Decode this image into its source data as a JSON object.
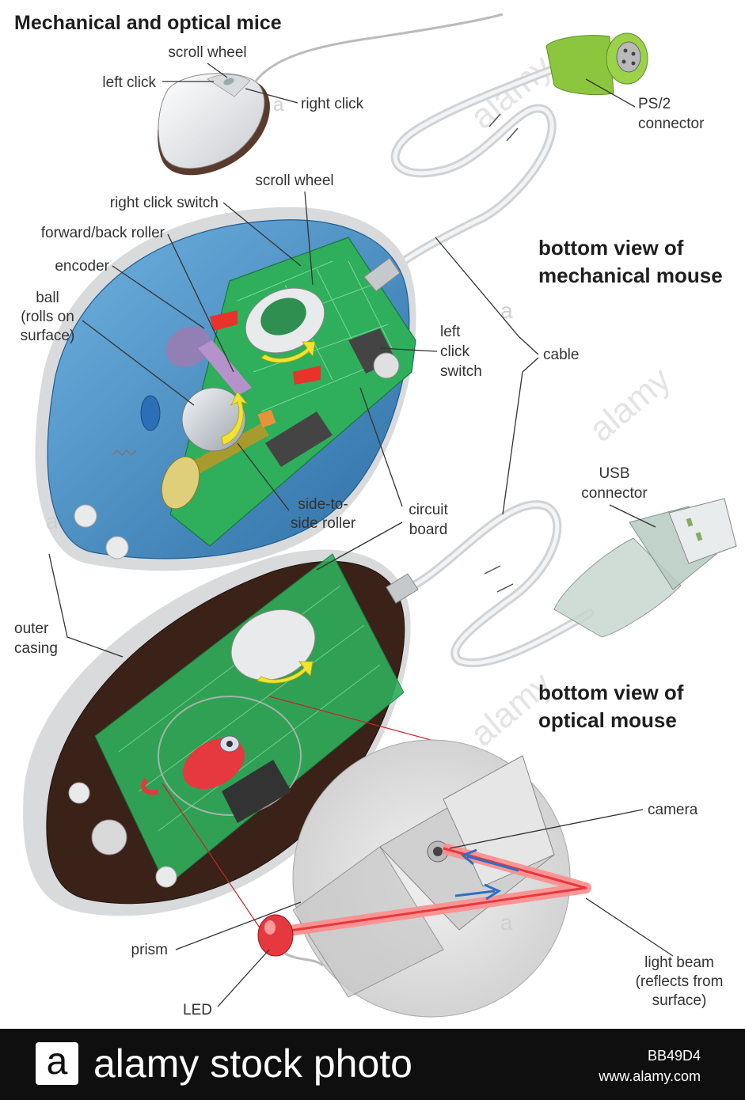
{
  "title": "Mechanical and optical mice",
  "headings": {
    "mechanical": [
      "bottom view of",
      "mechanical mouse"
    ],
    "optical": [
      "bottom view of",
      "optical mouse"
    ]
  },
  "labels": {
    "scroll_wheel_top": "scroll wheel",
    "left_click": "left click",
    "right_click": "right click",
    "ps2": [
      "PS/2",
      "connector"
    ],
    "scroll_wheel_mech": "scroll wheel",
    "right_click_switch": "right click switch",
    "forward_back_roller": "forward/back roller",
    "encoder": "encoder",
    "ball": [
      "ball",
      "(rolls on",
      "surface)"
    ],
    "left_click_switch": [
      "left",
      "click",
      "switch"
    ],
    "cable": "cable",
    "side_roller": [
      "side-to-",
      "side roller"
    ],
    "circuit_board": [
      "circuit",
      "board"
    ],
    "usb": [
      "USB",
      "connector"
    ],
    "outer_casing": [
      "outer",
      "casing"
    ],
    "camera": "camera",
    "prism": "prism",
    "led": "LED",
    "light_beam": [
      "light beam",
      "(reflects from",
      "surface)"
    ]
  },
  "watermark": {
    "letter": "a",
    "word": "alamy"
  },
  "footer": {
    "logo_letter": "a",
    "brand": "alamy stock photo",
    "image_id": "BB49D4",
    "site": "www.alamy.com"
  },
  "colors": {
    "mech_shell": "#3f86c0",
    "circuit_board": "#2fae5c",
    "optical_shell": "#3a2218",
    "ps2_plug": "#8cc63f",
    "laser": "#e5393f",
    "arrow_yellow": "#f2e332",
    "beam_arrow": "#2f6fc4"
  }
}
